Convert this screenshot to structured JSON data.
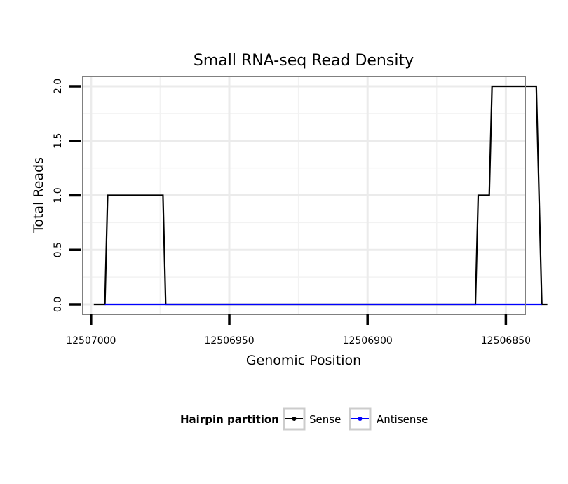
{
  "chart_data": {
    "type": "line",
    "title": "Small RNA-seq Read Density",
    "xlabel": "Genomic Position",
    "ylabel": "Total Reads",
    "xlim": [
      12507003,
      12506843
    ],
    "ylim": [
      -0.09,
      2.09
    ],
    "x_reversed": true,
    "x_ticks": [
      12507000,
      12506950,
      12506900,
      12506850
    ],
    "x_tick_labels": [
      "12507000",
      "12506950",
      "12506900",
      "12506850"
    ],
    "y_ticks": [
      0.0,
      0.5,
      1.0,
      1.5,
      2.0
    ],
    "y_tick_labels": [
      "0.0",
      "0.5",
      "1.0",
      "1.5",
      "2.0"
    ],
    "grid": true,
    "legend": {
      "title": "Hairpin partition",
      "position": "bottom",
      "entries": [
        {
          "label": "Sense",
          "color": "#000000"
        },
        {
          "label": "Antisense",
          "color": "#0000ff"
        }
      ]
    },
    "series": [
      {
        "name": "Sense",
        "color": "#000000",
        "x": [
          12506999,
          12506995,
          12506994,
          12506974,
          12506973,
          12506861,
          12506860,
          12506856,
          12506855,
          12506839,
          12506837,
          12506835
        ],
        "y": [
          0,
          0,
          1,
          1,
          0,
          0,
          1,
          1,
          2,
          2,
          0,
          0
        ]
      },
      {
        "name": "Antisense",
        "color": "#0000ff",
        "x": [
          12506995,
          12506837
        ],
        "y": [
          0,
          0
        ]
      }
    ]
  }
}
